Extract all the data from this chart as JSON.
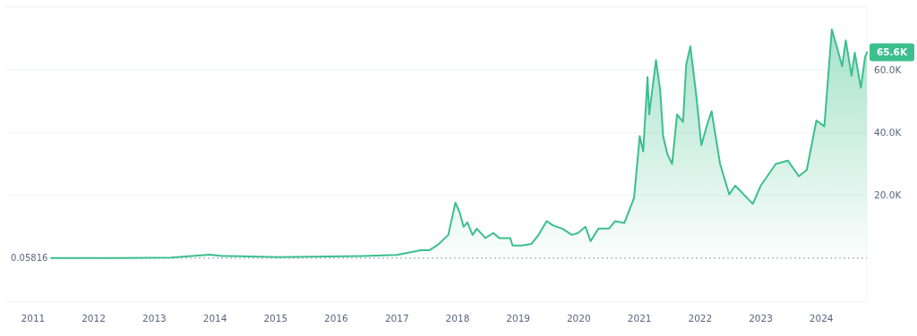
{
  "chart_data": {
    "type": "area",
    "xlim": [
      "2010-07-13",
      "2024-10-01"
    ],
    "ylim": [
      -14000,
      80000
    ],
    "xticks": [
      {
        "value": "2011",
        "label": "2011"
      },
      {
        "value": "2012",
        "label": "2012"
      },
      {
        "value": "2013",
        "label": "2013"
      },
      {
        "value": "2014",
        "label": "2014"
      },
      {
        "value": "2015",
        "label": "2015"
      },
      {
        "value": "2016",
        "label": "2016"
      },
      {
        "value": "2017",
        "label": "2017"
      },
      {
        "value": "2018",
        "label": "2018"
      },
      {
        "value": "2019",
        "label": "2019"
      },
      {
        "value": "2020",
        "label": "2020"
      },
      {
        "value": "2021",
        "label": "2021"
      },
      {
        "value": "2022",
        "label": "2022"
      },
      {
        "value": "2023",
        "label": "2023"
      },
      {
        "value": "2024",
        "label": "2024"
      }
    ],
    "yticks": [
      {
        "value": 20000,
        "label": "20.0K"
      },
      {
        "value": 40000,
        "label": "40.0K"
      },
      {
        "value": 60000,
        "label": "60.0K"
      }
    ],
    "grid": "y",
    "ref_lines": [
      {
        "axis": "y",
        "value": 0.05816,
        "label": "0.05816",
        "color": "#a6b0c3",
        "line_style": "dotted"
      }
    ],
    "annotations": [
      {
        "text": "65.6K",
        "x": "2024-10-01",
        "y": 65600
      }
    ],
    "series": [
      {
        "color": "#3cbf8e",
        "x": [
          "2011-04-20",
          "2011-06-08",
          "2012-06-01",
          "2013-04-10",
          "2013-11-30",
          "2014-02-15",
          "2014-06-01",
          "2015-01-15",
          "2016-06-15",
          "2017-01-01",
          "2017-05-25",
          "2017-07-15",
          "2017-09-10",
          "2017-11-06",
          "2017-12-19",
          "2018-01-15",
          "2018-02-06",
          "2018-03-01",
          "2018-04-01",
          "2018-04-27",
          "2018-06-17",
          "2018-08-04",
          "2018-09-09",
          "2018-11-14",
          "2018-11-28",
          "2019-01-22",
          "2019-03-21",
          "2019-05-04",
          "2019-06-21",
          "2019-07-31",
          "2019-09-24",
          "2019-11-21",
          "2019-12-27",
          "2020-02-10",
          "2020-03-12",
          "2020-04-28",
          "2020-07-01",
          "2020-08-07",
          "2020-10-01",
          "2020-11-29",
          "2021-01-02",
          "2021-01-23",
          "2021-02-18",
          "2021-02-28",
          "2021-04-10",
          "2021-05-05",
          "2021-05-23",
          "2021-06-18",
          "2021-07-16",
          "2021-08-15",
          "2021-09-20",
          "2021-10-09",
          "2021-11-03",
          "2021-12-09",
          "2022-01-08",
          "2022-02-14",
          "2022-03-11",
          "2022-05-01",
          "2022-06-25",
          "2022-07-31",
          "2022-10-27",
          "2022-11-14",
          "2023-01-01",
          "2023-04-01",
          "2023-06-13",
          "2023-08-18",
          "2023-10-05",
          "2023-12-02",
          "2024-01-19",
          "2024-03-04",
          "2024-04-08",
          "2024-05-05",
          "2024-05-27",
          "2024-07-01",
          "2024-07-20",
          "2024-08-26",
          "2024-09-20",
          "2024-10-01"
        ],
        "values": [
          0,
          0,
          0,
          200,
          1100,
          700,
          600,
          300,
          700,
          1000,
          2500,
          2500,
          4500,
          7400,
          17700,
          14300,
          10000,
          11400,
          7400,
          9400,
          6400,
          8000,
          6400,
          6400,
          4000,
          4000,
          4500,
          7400,
          11800,
          10400,
          9400,
          7400,
          8000,
          10000,
          5400,
          9400,
          9400,
          11800,
          11200,
          19200,
          38900,
          34000,
          57700,
          45800,
          63100,
          53700,
          38900,
          33100,
          30000,
          45800,
          43400,
          61700,
          67500,
          51700,
          36000,
          42900,
          46800,
          30000,
          20300,
          23100,
          18300,
          17300,
          23100,
          30000,
          31100,
          26100,
          28100,
          43900,
          42000,
          72900,
          66500,
          61100,
          69400,
          58100,
          65500,
          54300,
          64000,
          65600
        ]
      }
    ]
  }
}
